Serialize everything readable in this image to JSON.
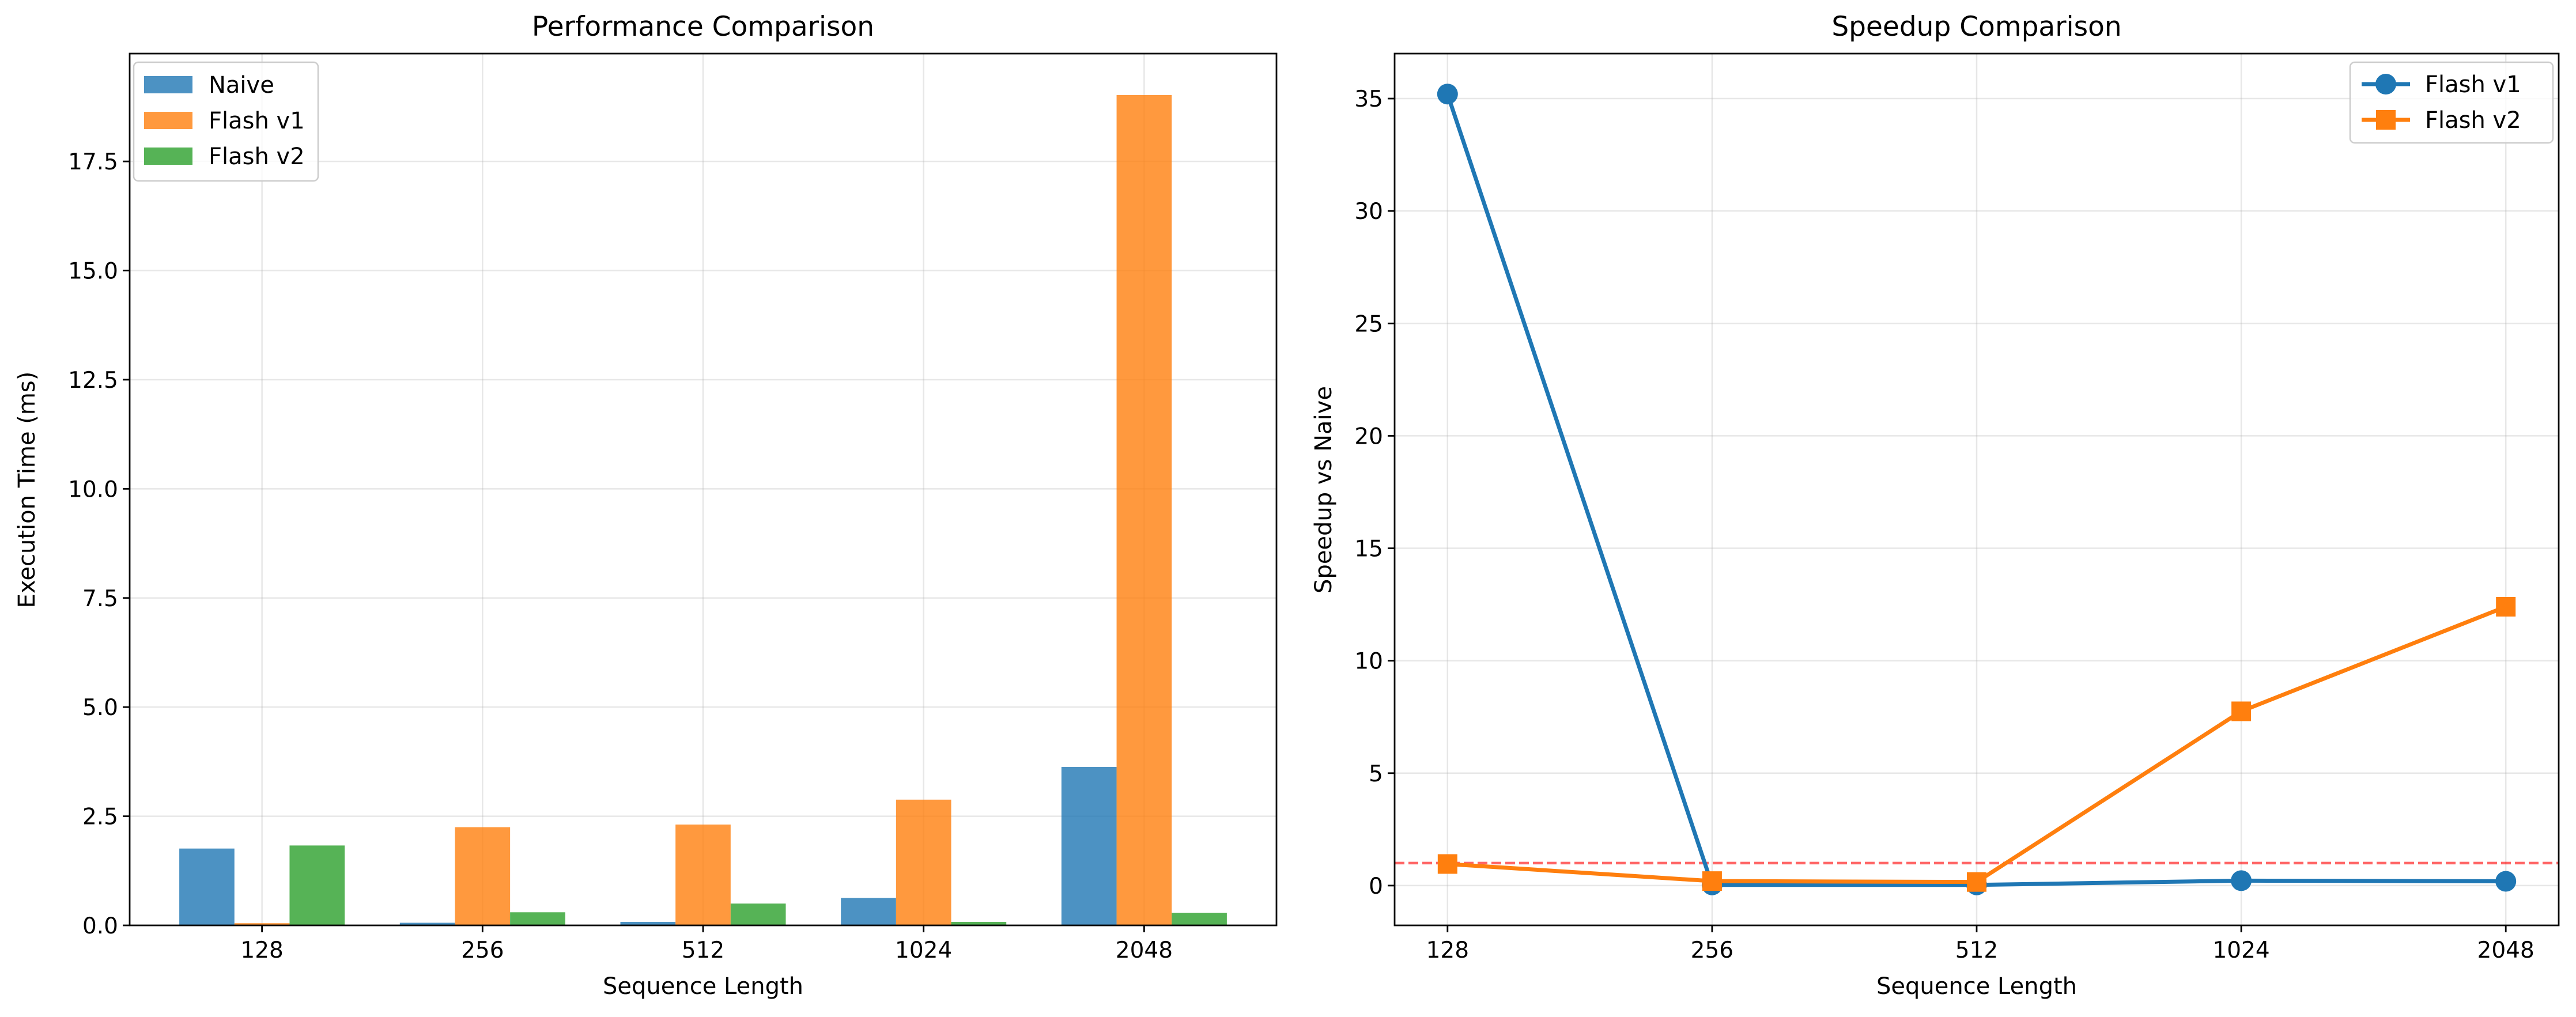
{
  "chart_data": [
    {
      "type": "bar",
      "title": "Performance Comparison",
      "xlabel": "Sequence Length",
      "ylabel": "Execution Time (ms)",
      "categories": [
        "128",
        "256",
        "512",
        "1024",
        "2048"
      ],
      "series": [
        {
          "name": "Naive",
          "values": [
            1.76,
            0.06,
            0.08,
            0.63,
            3.63
          ],
          "color": "#1f77b4"
        },
        {
          "name": "Flash v1",
          "values": [
            0.05,
            2.25,
            2.31,
            2.88,
            19.02
          ],
          "color": "#ff7f0e"
        },
        {
          "name": "Flash v2",
          "values": [
            1.83,
            0.3,
            0.5,
            0.08,
            0.29
          ],
          "color": "#2ca02c"
        }
      ],
      "ylim": [
        0,
        19.97
      ],
      "yticks": [
        0.0,
        2.5,
        5.0,
        7.5,
        10.0,
        12.5,
        15.0,
        17.5
      ],
      "ytick_labels": [
        "0.0",
        "2.5",
        "5.0",
        "7.5",
        "10.0",
        "12.5",
        "15.0",
        "17.5"
      ],
      "bar_alpha": 0.8,
      "grid": true,
      "legend": "upper-left"
    },
    {
      "type": "line",
      "title": "Speedup Comparison",
      "xlabel": "Sequence Length",
      "ylabel": "Speedup vs Naive",
      "categories": [
        "128",
        "256",
        "512",
        "1024",
        "2048"
      ],
      "series": [
        {
          "name": "Flash v1",
          "values": [
            35.2,
            0.03,
            0.03,
            0.22,
            0.19
          ],
          "color": "#1f77b4",
          "marker": "circle"
        },
        {
          "name": "Flash v2",
          "values": [
            0.96,
            0.2,
            0.16,
            7.75,
            12.4
          ],
          "color": "#ff7f0e",
          "marker": "square"
        }
      ],
      "reference_line": {
        "y": 1.0,
        "color": "#ff0000",
        "style": "dashed",
        "alpha": 0.6
      },
      "ylim": [
        -1.77,
        37.0
      ],
      "yticks": [
        0,
        5,
        10,
        15,
        20,
        25,
        30,
        35
      ],
      "ytick_labels": [
        "0",
        "5",
        "10",
        "15",
        "20",
        "25",
        "30",
        "35"
      ],
      "grid": true,
      "legend": "upper-right"
    }
  ]
}
